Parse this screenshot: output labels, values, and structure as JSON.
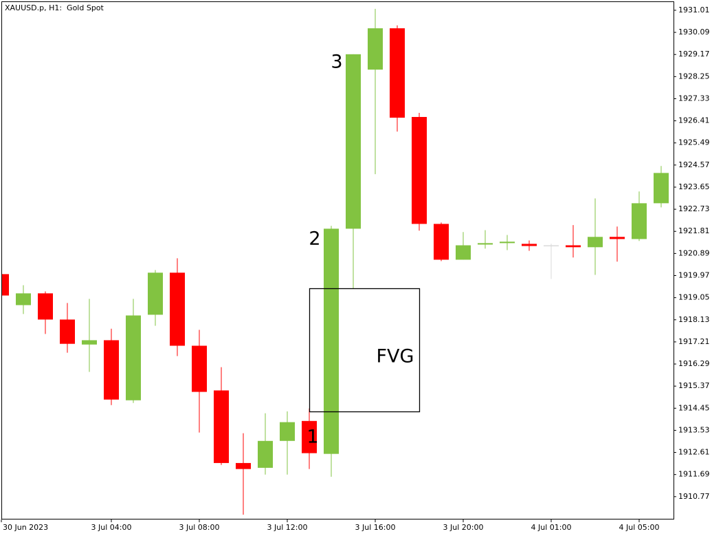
{
  "chart_data": {
    "type": "candlestick",
    "title": "XAUUSD.p, H1:  Gold Spot",
    "categories": [
      "30 Jun 2023",
      null,
      null,
      null,
      null,
      "3 Jul 04:00",
      null,
      null,
      null,
      "3 Jul 08:00",
      null,
      null,
      null,
      "3 Jul 12:00",
      null,
      null,
      null,
      "3 Jul 16:00",
      null,
      null,
      null,
      "3 Jul 20:00",
      null,
      null,
      null,
      "4 Jul 01:00",
      null,
      null,
      null,
      "4 Jul 05:00",
      null
    ],
    "open": [
      1920.03,
      1918.74,
      1919.23,
      1918.14,
      1917.1,
      1917.28,
      1914.78,
      1918.34,
      1920.09,
      1917.05,
      1915.19,
      1912.17,
      1911.97,
      1913.09,
      1913.92,
      1912.55,
      1921.92,
      1928.54,
      1930.26,
      1926.57,
      1922.12,
      1920.63,
      1921.26,
      1921.32,
      1921.29,
      1921.23,
      1921.23,
      1921.15,
      1921.58,
      1921.49,
      1922.98
    ],
    "high": [
      1920.03,
      1919.57,
      1919.31,
      1918.83,
      1919.0,
      1917.76,
      1919.0,
      1920.2,
      1920.69,
      1917.71,
      1916.16,
      1913.41,
      1914.24,
      1914.32,
      1914.44,
      1922.04,
      1929.18,
      1931.07,
      1930.38,
      1926.74,
      1922.18,
      1921.78,
      1921.86,
      1921.66,
      1921.43,
      1921.29,
      1922.07,
      1923.18,
      1922.01,
      1923.47,
      1924.53
    ],
    "low": [
      1919.14,
      1918.37,
      1917.54,
      1916.76,
      1915.96,
      1914.58,
      1914.67,
      1917.88,
      1916.62,
      1913.44,
      1912.09,
      1910.02,
      1911.69,
      1911.69,
      1911.92,
      1911.6,
      1919.43,
      1924.19,
      1925.96,
      1921.84,
      1920.57,
      1920.63,
      1921.09,
      1921.03,
      1921.0,
      1919.83,
      1920.72,
      1920.0,
      1920.55,
      1921.41,
      1922.81
    ],
    "close": [
      1919.14,
      1919.23,
      1918.14,
      1917.13,
      1917.28,
      1914.81,
      1918.31,
      1920.09,
      1917.05,
      1915.13,
      1912.17,
      1911.92,
      1913.09,
      1913.87,
      1912.58,
      1921.92,
      1929.18,
      1930.26,
      1926.54,
      1922.12,
      1920.63,
      1921.23,
      1921.32,
      1921.38,
      1921.2,
      1921.23,
      1921.15,
      1921.58,
      1921.49,
      1922.98,
      1924.24
    ],
    "up_color": "#82c341",
    "down_color": "#ff0000",
    "doji_color": "#d9d9d9",
    "ylim": [
      1909.82,
      1931.38
    ],
    "yticks": [
      1931.01,
      1930.09,
      1929.17,
      1928.25,
      1927.33,
      1926.41,
      1925.49,
      1924.57,
      1923.65,
      1922.73,
      1921.81,
      1920.89,
      1919.97,
      1919.05,
      1918.13,
      1917.21,
      1916.29,
      1915.37,
      1914.45,
      1913.53,
      1912.61,
      1911.69,
      1910.77
    ],
    "annotations": [
      "1",
      "2",
      "3",
      "FVG"
    ]
  }
}
